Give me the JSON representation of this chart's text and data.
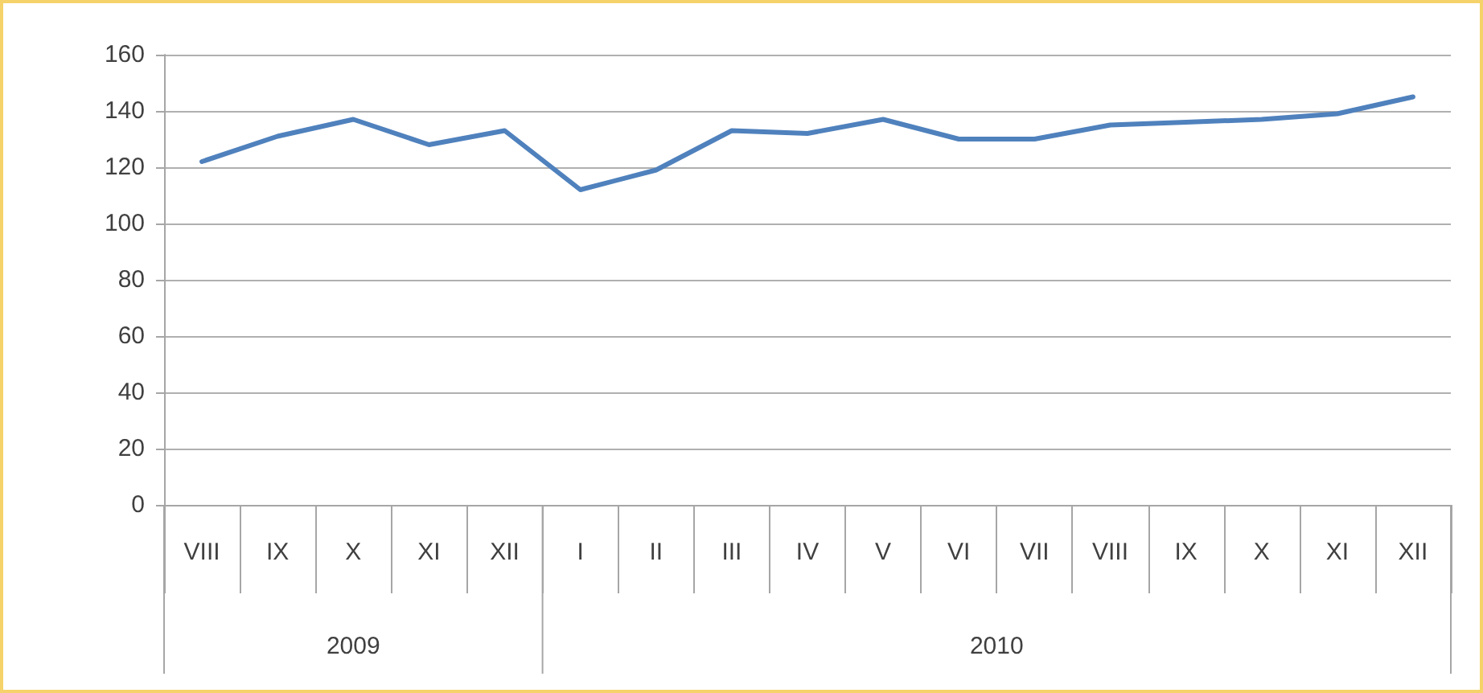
{
  "chart_data": {
    "type": "line",
    "categories": [
      "VIII",
      "IX",
      "X",
      "XI",
      "XII",
      "I",
      "II",
      "III",
      "IV",
      "V",
      "VI",
      "VII",
      "VIII",
      "IX",
      "X",
      "XI",
      "XII"
    ],
    "series": [
      {
        "color": "#4f81bd",
        "values": [
          122,
          131,
          137,
          128,
          133,
          112,
          119,
          133,
          132,
          137,
          130,
          130,
          135,
          136,
          137,
          139,
          145
        ]
      }
    ],
    "ylim": [
      0,
      160
    ],
    "yticks": [
      0,
      20,
      40,
      60,
      80,
      100,
      120,
      140,
      160
    ],
    "grid": "y",
    "marker": "none",
    "line_style": "solid",
    "annotations": [
      "2009",
      "2010"
    ]
  }
}
